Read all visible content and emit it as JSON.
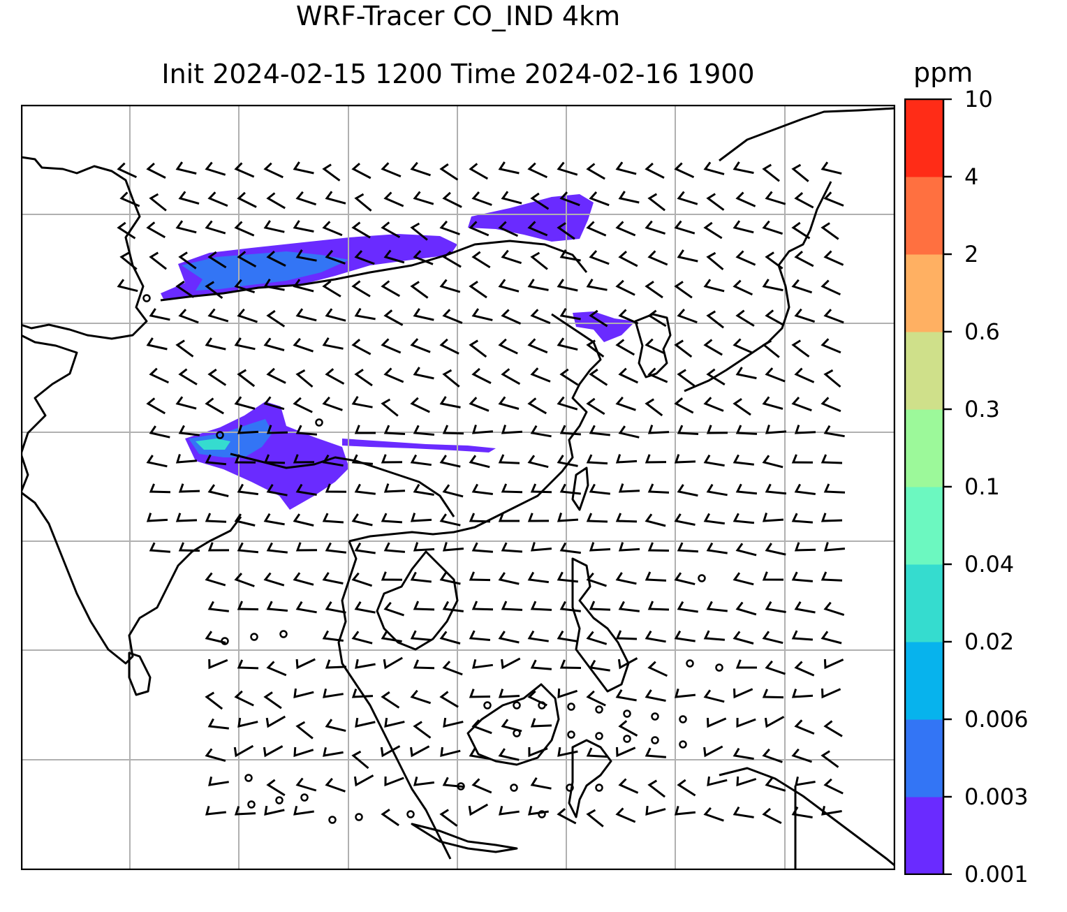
{
  "title_line1": "WRF-Tracer CO_IND 4km",
  "title_line2": "Init 2024-02-15 1200 Time 2024-02-16 1900",
  "map": {
    "field": "CO_IND tracer concentration",
    "resolution": "4km",
    "overlay": "wind barbs",
    "gridlines": true,
    "coastlines": true,
    "borders": true,
    "shading_color": "#6a3bff"
  },
  "colorbar": {
    "unit": "ppm",
    "levels": [
      "0.001",
      "0.003",
      "0.006",
      "0.02",
      "0.04",
      "0.1",
      "0.3",
      "0.6",
      "2",
      "4",
      "10"
    ],
    "colors": [
      "#6a2bff",
      "#3375f5",
      "#07b3ed",
      "#35dccf",
      "#6cf8c0",
      "#9cf99a",
      "#cfe08a",
      "#ffb062",
      "#ff7040",
      "#ff2c17"
    ]
  }
}
